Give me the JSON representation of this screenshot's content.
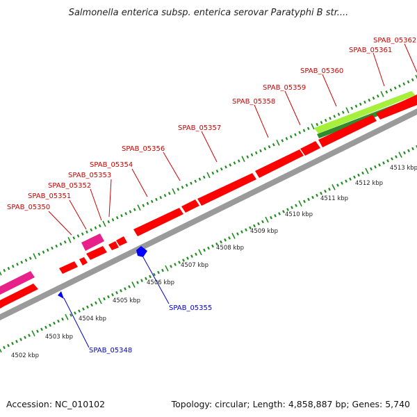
{
  "title": "Salmonella enterica subsp. enterica serovar Paratyphi B str....",
  "footer": {
    "accession": "Accession: NC_010102",
    "summary": "Topology: circular; Length: 4,858,887 bp; Genes: 5,740"
  },
  "colors": {
    "cds": "#ff0000",
    "rna": "#e8208a",
    "gc_skew_light": "#a6f03c",
    "gc_skew_dark": "#2e8b2e",
    "backbone": "#9a9a9a",
    "ticks": "#1e8c1e",
    "label_forward": "#cc0000",
    "label_reverse": "#0000cc",
    "reverse_feature": "#0000ff"
  },
  "kbp_scale": [
    "4502 kbp",
    "4503 kbp",
    "4504 kbp",
    "4505 kbp",
    "4506 kbp",
    "4507 kbp",
    "4508 kbp",
    "4509 kbp",
    "4510 kbp",
    "4511 kbp",
    "4512 kbp",
    "4513 kbp"
  ],
  "forward_labels": [
    "SPAB_05350",
    "SPAB_05351",
    "SPAB_05352",
    "SPAB_05353",
    "SPAB_05354",
    "SPAB_05356",
    "SPAB_05357",
    "SPAB_05358",
    "SPAB_05359",
    "SPAB_05360",
    "SPAB_05361",
    "SPAB_05362"
  ],
  "reverse_labels": [
    "SPAB_05348",
    "SPAB_05355"
  ]
}
